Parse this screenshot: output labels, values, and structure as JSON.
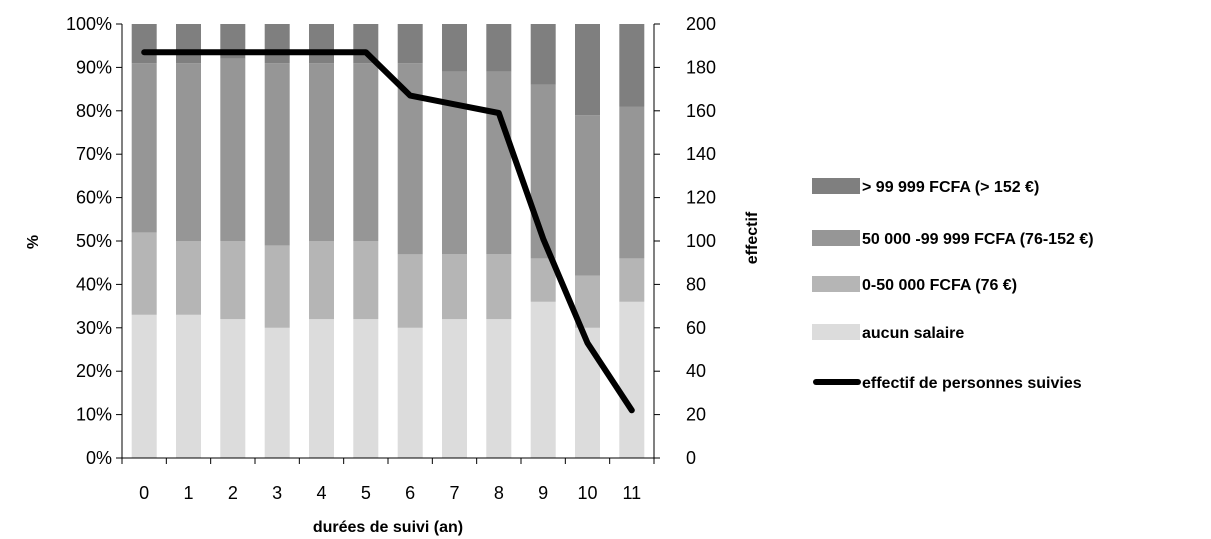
{
  "chart_data": {
    "type": "bar",
    "subtype": "stacked-percent-bar-with-line",
    "xlabel": "durées de suivi (an)",
    "ylabel": "%",
    "y2label": "effectif",
    "ylim": [
      0,
      100
    ],
    "y2lim": [
      0,
      200
    ],
    "yticks": [
      "0%",
      "10%",
      "20%",
      "30%",
      "40%",
      "50%",
      "60%",
      "70%",
      "80%",
      "90%",
      "100%"
    ],
    "y2ticks": [
      "0",
      "20",
      "40",
      "60",
      "80",
      "100",
      "120",
      "140",
      "160",
      "180",
      "200"
    ],
    "categories": [
      "0",
      "1",
      "2",
      "3",
      "4",
      "5",
      "6",
      "7",
      "8",
      "9",
      "10",
      "11"
    ],
    "grid": false,
    "legend_position": "right",
    "series": [
      {
        "name": "aucun salaire",
        "color": "#dcdcdc",
        "values": [
          33,
          33,
          32,
          30,
          32,
          32,
          30,
          32,
          32,
          36,
          30,
          36
        ]
      },
      {
        "name": "0-50 000 FCFA (76 €)",
        "color": "#b5b5b5",
        "values": [
          19,
          17,
          18,
          19,
          18,
          18,
          17,
          15,
          15,
          10,
          12,
          10
        ]
      },
      {
        "name": "50 000 -99 999 FCFA (76-152 €)",
        "color": "#969696",
        "values": [
          39,
          41,
          42,
          42,
          41,
          41,
          44,
          42,
          42,
          40,
          37,
          35
        ]
      },
      {
        "name": "> 99 999 FCFA (> 152 €)",
        "color": "#7f7f7f",
        "values": [
          9,
          9,
          8,
          9,
          9,
          9,
          9,
          11,
          11,
          14,
          21,
          19
        ]
      }
    ],
    "line": {
      "name": "effectif de personnes suivies",
      "color": "#000000",
      "axis": "y2",
      "values": [
        187,
        187,
        187,
        187,
        187,
        187,
        167,
        163,
        159,
        101,
        53,
        22
      ]
    }
  }
}
